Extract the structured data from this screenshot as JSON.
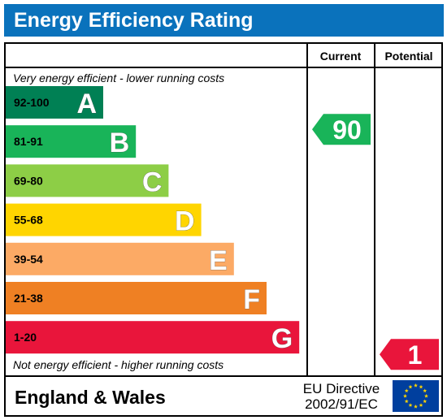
{
  "title": "Energy Efficiency Rating",
  "columns": {
    "current": "Current",
    "potential": "Potential"
  },
  "notes": {
    "top": "Very energy efficient - lower running costs",
    "bottom": "Not energy efficient - higher running costs"
  },
  "footer": {
    "region": "England & Wales",
    "directive_line1": "EU Directive",
    "directive_line2": "2002/91/EC",
    "flag": "eu-flag-icon"
  },
  "chart_data": {
    "type": "bar",
    "categories": [
      "A",
      "B",
      "C",
      "D",
      "E",
      "F",
      "G"
    ],
    "ranges": [
      "92-100",
      "81-91",
      "69-80",
      "55-68",
      "39-54",
      "21-38",
      "1-20"
    ],
    "colors": [
      "#008054",
      "#19b459",
      "#8dce46",
      "#ffd500",
      "#fcaa65",
      "#ef8023",
      "#e9153b"
    ],
    "current": {
      "value": 90,
      "band": "B",
      "color": "#19b459"
    },
    "potential": {
      "value": 1,
      "band": "G",
      "color": "#e9153b"
    }
  }
}
